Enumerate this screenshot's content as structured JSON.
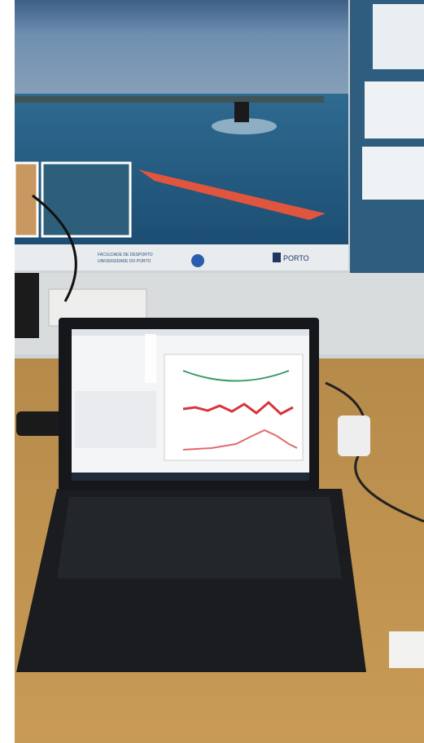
{
  "poster": {
    "faculty": "FACULDADE DE DESPORTO",
    "university": "UNIVERSIDADE DO PORTO",
    "brand": "PORTO"
  }
}
